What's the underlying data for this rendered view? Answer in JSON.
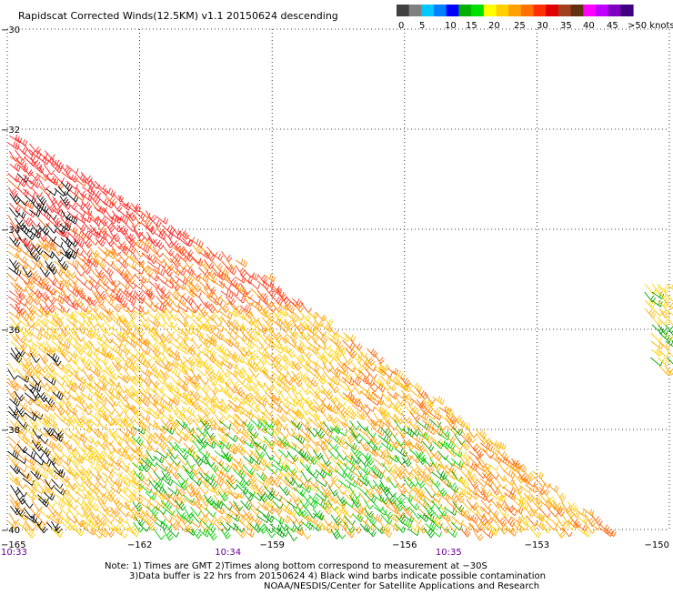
{
  "title": "Rapidscat Corrected Winds(12.5KM) v1.1 20150624 descending",
  "colorbar": {
    "labels": [
      "0",
      "5",
      "10",
      "15",
      "20",
      "25",
      "30",
      "35",
      "40",
      "45",
      ">50 knots"
    ],
    "colors": [
      "#404040",
      "#808080",
      "#00c8ff",
      "#0080ff",
      "#0000ff",
      "#00b000",
      "#00e000",
      "#ffff00",
      "#ffd000",
      "#ffa000",
      "#ff7000",
      "#ff3000",
      "#e00000",
      "#a04020",
      "#603010",
      "#ff00ff",
      "#c000ff",
      "#8000c0",
      "#400080"
    ]
  },
  "notes": {
    "line1": "Note: 1) Times are GMT 2)Times along bottom correspond to measurement at −30S",
    "line2": "3)Data buffer is 22 hrs from 20150624 4) Black wind barbs indicate possible contamination",
    "line3": "NOAA/NESDIS/Center for Satellite Applications and Research"
  },
  "chart_data": {
    "type": "wind-barb-map",
    "title": "Rapidscat Corrected Winds(12.5KM) v1.1 20150624 descending",
    "x_ticks": [
      "−165",
      "−162",
      "−159",
      "−156",
      "−153",
      "−150"
    ],
    "x_tick_values": [
      -165,
      -162,
      -159,
      -156,
      -153,
      -150
    ],
    "y_ticks": [
      "−30",
      "−32",
      "−34",
      "−36",
      "−38",
      "−40"
    ],
    "y_tick_values": [
      -30,
      -32,
      -34,
      -36,
      -38,
      -40
    ],
    "xlim": [
      -165,
      -150
    ],
    "ylim": [
      -40,
      -30
    ],
    "time_labels": [
      "10:33",
      "10:34",
      "10:35"
    ],
    "time_label_lons": [
      -165,
      -160,
      -155
    ],
    "grid": "dotted",
    "swath_main": {
      "lon": [
        -165,
        -165,
        -158.8,
        -151.3
      ],
      "lat": [
        -40,
        -32,
        -35.1,
        -40
      ]
    },
    "swath_edge": {
      "lon": [
        -150.6,
        -150
      ],
      "lat": [
        -35.5,
        -37.9
      ]
    }
  }
}
